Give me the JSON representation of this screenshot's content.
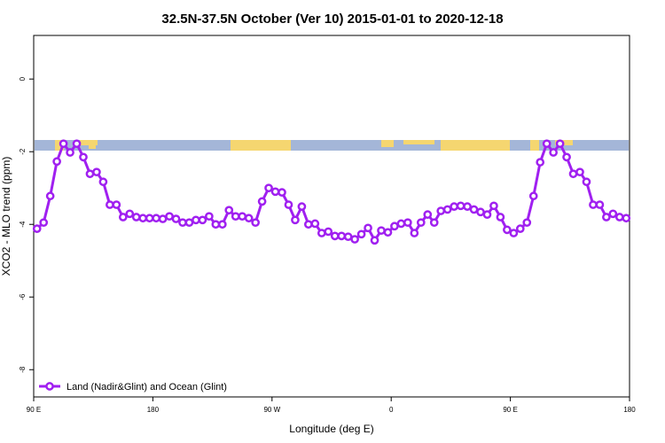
{
  "chart_data": {
    "type": "line",
    "title": "32.5N-37.5N October (Ver 10)   2015-01-01 to 2020-12-18",
    "x_label": "Longitude (deg E)",
    "y_label": "XCO2 - MLO trend (ppm)",
    "xlim": [
      90,
      540
    ],
    "ylim": [
      -8.75,
      1.2
    ],
    "xticks": [
      {
        "value": 90,
        "label": "90 E"
      },
      180,
      {
        "value": 270,
        "label": "90 W"
      },
      {
        "value": 360,
        "label": "0"
      },
      {
        "value": 450,
        "label": "90 E"
      },
      {
        "value": 540,
        "label": "180"
      }
    ],
    "yticks": [
      0,
      -2,
      -4,
      -6,
      -8
    ],
    "legend_position": "lower left",
    "x": [
      92.5,
      97.5,
      102.5,
      107.5,
      112.5,
      117.5,
      122.5,
      127.5,
      132.5,
      137.5,
      142.5,
      147.5,
      152.5,
      157.5,
      162.5,
      167.5,
      172.5,
      177.5,
      182.5,
      187.5,
      192.5,
      197.5,
      202.5,
      207.5,
      212.5,
      217.5,
      222.5,
      227.5,
      232.5,
      237.5,
      242.5,
      247.5,
      252.5,
      257.5,
      262.5,
      267.5,
      272.5,
      277.5,
      282.5,
      287.5,
      292.5,
      297.5,
      302.5,
      307.5,
      312.5,
      317.5,
      322.5,
      327.5,
      332.5,
      337.5,
      342.5,
      347.5,
      352.5,
      357.5,
      362.5,
      367.5,
      372.5,
      377.5,
      382.5,
      387.5,
      392.5,
      397.5,
      402.5,
      407.5,
      412.5,
      417.5,
      422.5,
      427.5,
      432.5,
      437.5,
      442.5,
      447.5,
      452.5,
      457.5,
      462.5,
      467.5,
      472.5,
      477.5,
      482.5,
      487.5,
      492.5,
      497.5,
      502.5,
      507.5,
      512.5,
      517.5,
      522.5,
      527.5,
      532.5,
      537.5
    ],
    "series": [
      {
        "name": "Land (Nadir&Glint) and Ocean (Glint)",
        "color": "#a020f0",
        "values": [
          -4.12,
          -3.95,
          -3.22,
          -2.27,
          -1.78,
          -2.02,
          -1.78,
          -2.15,
          -2.61,
          -2.56,
          -2.83,
          -3.46,
          -3.46,
          -3.8,
          -3.71,
          -3.8,
          -3.83,
          -3.83,
          -3.83,
          -3.85,
          -3.78,
          -3.85,
          -3.95,
          -3.95,
          -3.88,
          -3.88,
          -3.78,
          -4.0,
          -4.0,
          -3.61,
          -3.78,
          -3.78,
          -3.83,
          -3.95,
          -3.37,
          -3.0,
          -3.1,
          -3.12,
          -3.46,
          -3.88,
          -3.51,
          -4.0,
          -3.98,
          -4.24,
          -4.2,
          -4.32,
          -4.32,
          -4.34,
          -4.41,
          -4.27,
          -4.1,
          -4.44,
          -4.17,
          -4.22,
          -4.05,
          -3.98,
          -3.95,
          -4.24,
          -3.95,
          -3.73,
          -3.95,
          -3.63,
          -3.59,
          -3.51,
          -3.49,
          -3.51,
          -3.59,
          -3.66,
          -3.73,
          -3.49,
          -3.8,
          -4.15,
          -4.24,
          -4.12,
          -3.95,
          -3.22,
          -2.29,
          -1.78,
          -2.02,
          -1.78,
          -2.15,
          -2.61,
          -2.56,
          -2.83,
          -3.46,
          -3.46,
          -3.8,
          -3.71,
          -3.8,
          -3.83
        ]
      }
    ]
  }
}
